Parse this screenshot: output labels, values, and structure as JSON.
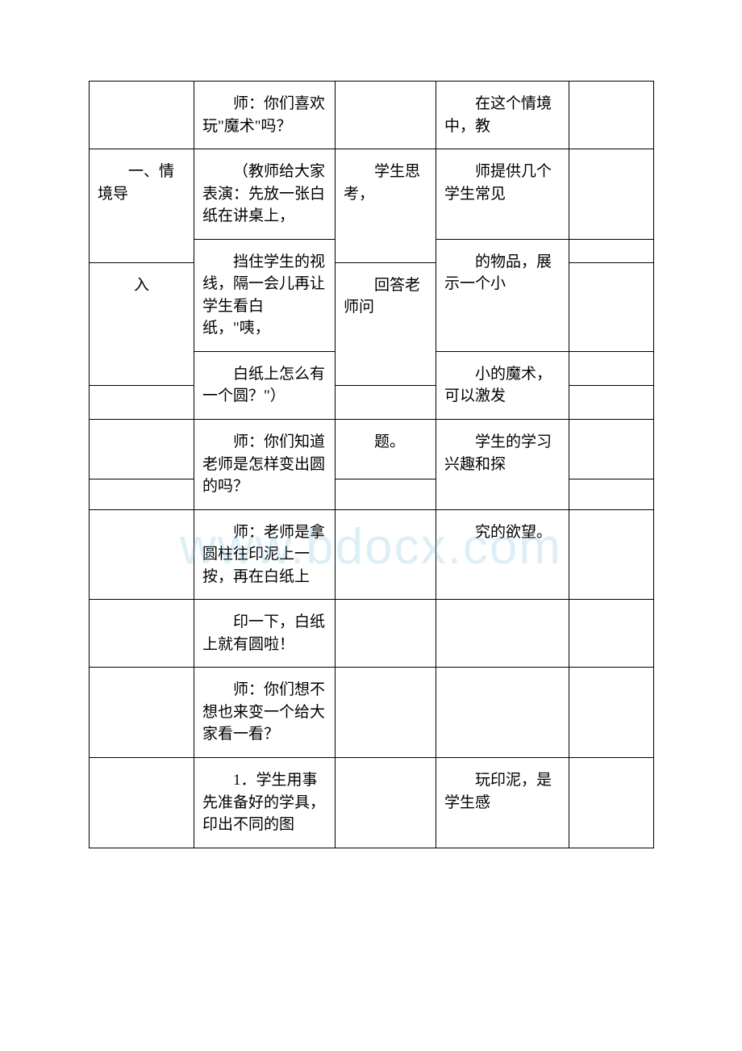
{
  "watermark": "www.bdocx.com",
  "cells": {
    "r1c2": "师：你们喜欢玩\"魔术\"吗？",
    "r1c4": "在这个情境中，教",
    "r2c1": "一、情境导",
    "r2c2": "（教师给大家表演：先放一张白纸在讲桌上，",
    "r2c3": "学生思考，",
    "r2c4": "师提供几个学生常见",
    "r3c2": "挡住学生的视线，隔一会儿再让学生看白纸，\"咦，",
    "r3c1": "入",
    "r3c3": "回答老师问",
    "r3c4": "的物品，展示一个小",
    "r4c2": "白纸上怎么有一个圆？\"）",
    "r4c4": "小的魔术，可以激发",
    "r5c2": "师：你们知道老师是怎样变出圆的吗？",
    "r5c3": "题。",
    "r5c4": "学生的学习兴趣和探",
    "r6c2": "师：老师是拿圆柱往印泥上一按，再在白纸上",
    "r6c4": "究的欲望。",
    "r7c2": "印一下，白纸上就有圆啦！",
    "r8c2": "师：你们想不想也来变一个给大家看一看？",
    "r9c2": "1．学生用事先准备好的学具，印出不同的图",
    "r9c4": "玩印泥，是学生感"
  }
}
